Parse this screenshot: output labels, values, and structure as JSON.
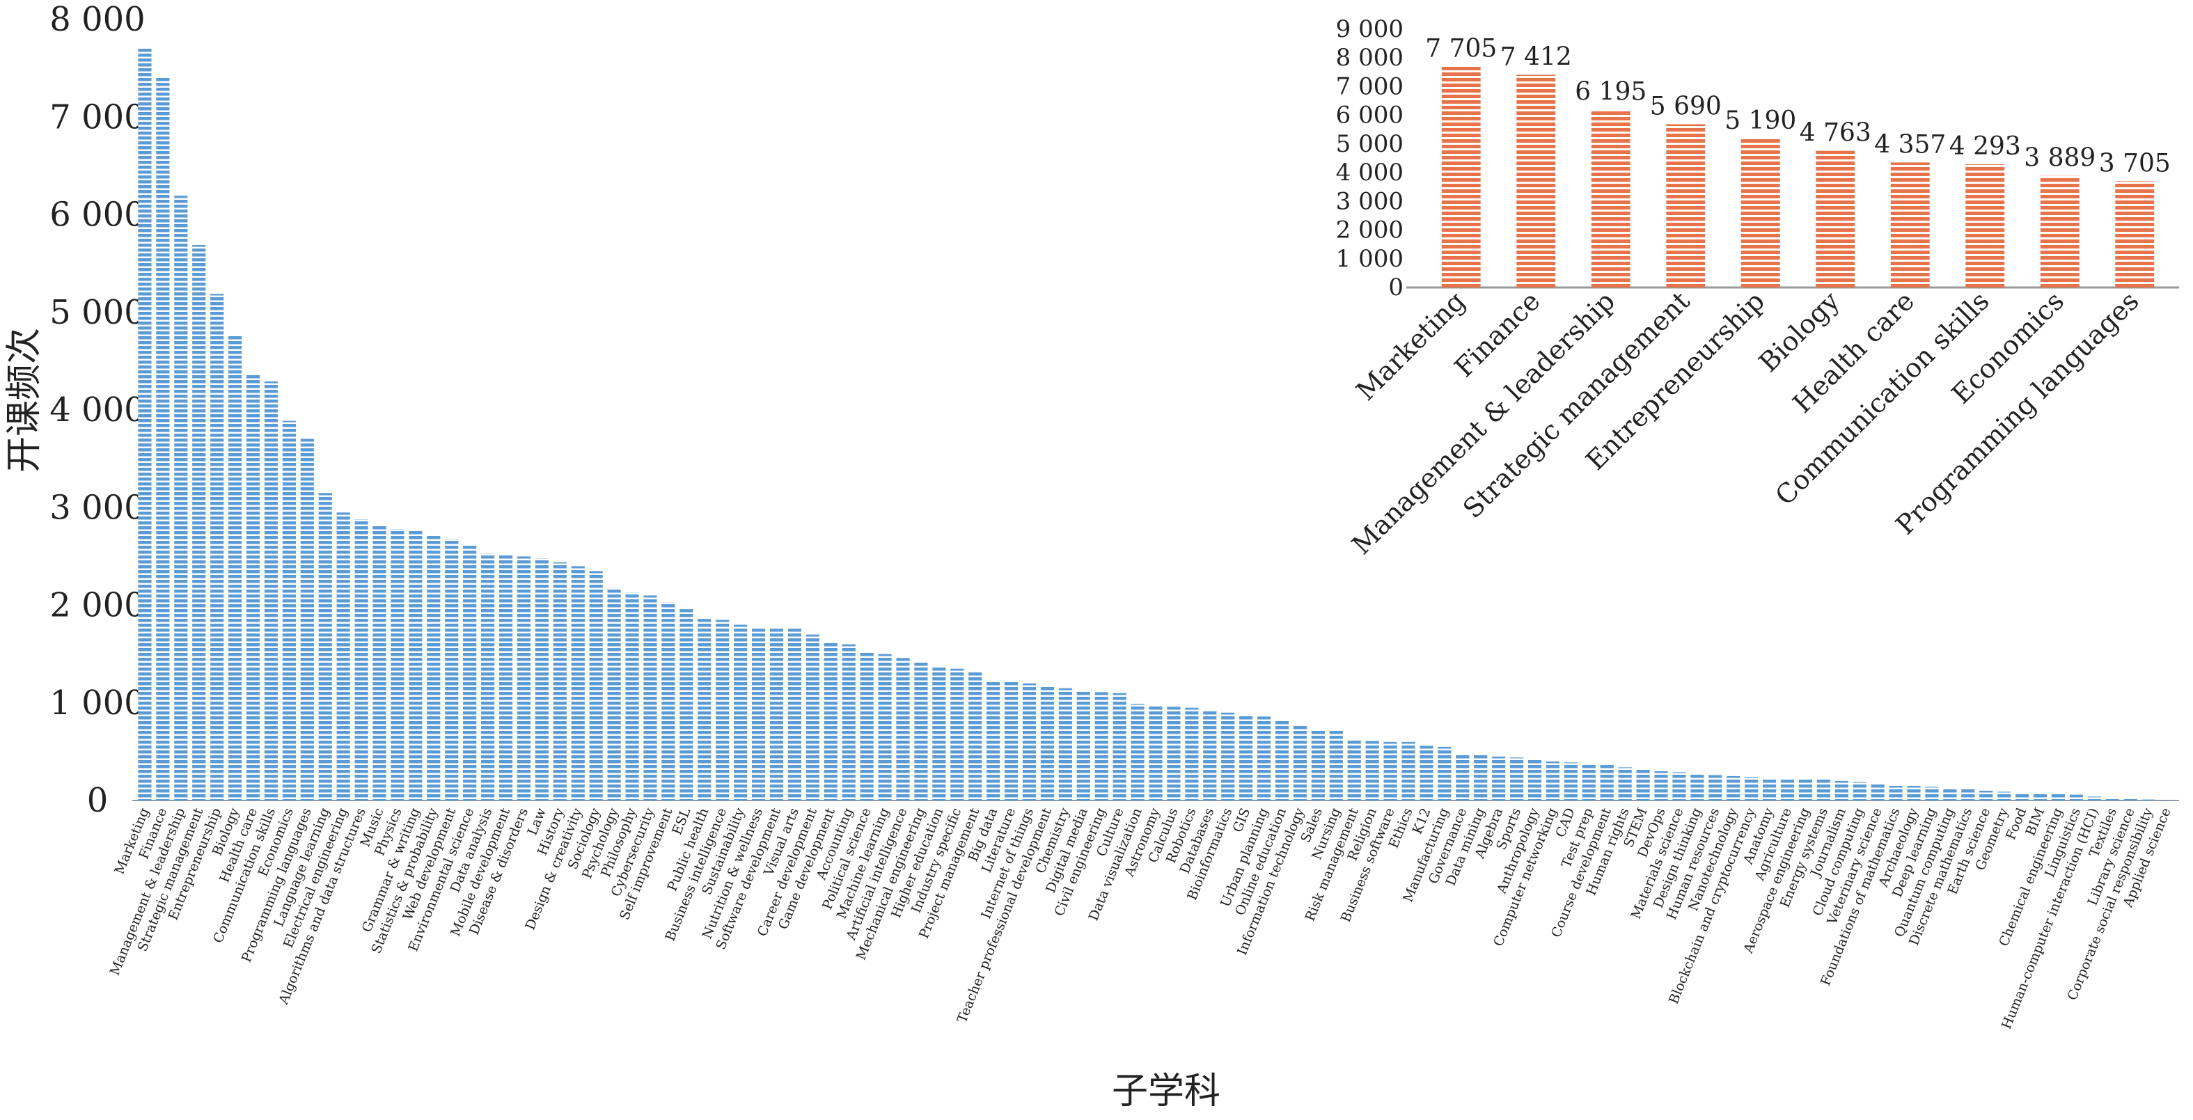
{
  "chart_data": [
    {
      "type": "bar",
      "ylabel": "开课频次",
      "xlabel": "子学科",
      "ylim": [
        0,
        8000
      ],
      "yticks": [
        0,
        1000,
        2000,
        3000,
        4000,
        5000,
        6000,
        7000,
        8000
      ],
      "ytick_labels": [
        "0",
        "1 000",
        "2 000",
        "3 000",
        "4 000",
        "5 000",
        "6 000",
        "7 000",
        "8 000"
      ],
      "grid": false,
      "bar_color": "#5b9bd5",
      "bar_pattern": "horizontal-stripes",
      "categories": [
        "Marketing",
        "Finance",
        "Management & leadership",
        "Strategic management",
        "Entrepreneurship",
        "Biology",
        "Health care",
        "Communication skills",
        "Economics",
        "Programming languages",
        "Language learning",
        "Electrical engineering",
        "Algorithms and data structures",
        "Music",
        "Physics",
        "Grammar & writing",
        "Statistics & probability",
        "Web development",
        "Environmental science",
        "Data analysis",
        "Mobile development",
        "Disease & disorders",
        "Law",
        "History",
        "Design & creativity",
        "Sociology",
        "Psychology",
        "Philosophy",
        "Cybersecurity",
        "Self improvement",
        "ESL",
        "Public health",
        "Business intelligence",
        "Sustainability",
        "Nutrition & wellness",
        "Software development",
        "Visual arts",
        "Career development",
        "Game development",
        "Accounting",
        "Political science",
        "Machine learning",
        "Artificial intelligence",
        "Mechanical engineering",
        "Higher education",
        "Industry specific",
        "Project management",
        "Big data",
        "Literature",
        "Internet of things",
        "Teacher professional development",
        "Chemistry",
        "Digital media",
        "Civil engineering",
        "Culture",
        "Data visualization",
        "Astronomy",
        "Calculus",
        "Robotics",
        "Databases",
        "Bioinformatics",
        "GIS",
        "Urban planning",
        "Online education",
        "Information technology",
        "Sales",
        "Nursing",
        "Risk management",
        "Religion",
        "Business software",
        "Ethics",
        "K12",
        "Manufacturing",
        "Governance",
        "Data mining",
        "Algebra",
        "Sports",
        "Anthropology",
        "Computer networking",
        "CAD",
        "Test prep",
        "Course development",
        "Human rights",
        "STEM",
        "DevOps",
        "Materials science",
        "Design thinking",
        "Human resources",
        "Nanotechnology",
        "Blockchain and cryptocurrency",
        "Anatomy",
        "Agriculture",
        "Aerospace engineering",
        "Energy systems",
        "Journalism",
        "Cloud computing",
        "Veterinary science",
        "Foundations of mathematics",
        "Archaeology",
        "Deep learning",
        "Quantum computing",
        "Discrete mathematics",
        "Earth science",
        "Geometry",
        "Food",
        "BIM",
        "Chemical engineering",
        "Linguistics",
        "Human-computer interaction (HCI)",
        "Textiles",
        "Library science",
        "Corporate social responsibility",
        "Applied science"
      ],
      "values": [
        7705,
        7412,
        6195,
        5690,
        5190,
        4763,
        4357,
        4293,
        3889,
        3705,
        3150,
        2950,
        2880,
        2820,
        2780,
        2760,
        2720,
        2680,
        2620,
        2530,
        2520,
        2500,
        2480,
        2440,
        2400,
        2350,
        2180,
        2130,
        2100,
        2030,
        1960,
        1860,
        1850,
        1800,
        1760,
        1760,
        1760,
        1700,
        1620,
        1600,
        1520,
        1500,
        1460,
        1420,
        1380,
        1350,
        1320,
        1230,
        1220,
        1200,
        1180,
        1150,
        1130,
        1110,
        1100,
        990,
        980,
        960,
        950,
        920,
        900,
        880,
        860,
        820,
        770,
        730,
        720,
        620,
        610,
        600,
        600,
        560,
        550,
        470,
        470,
        450,
        440,
        420,
        400,
        390,
        380,
        380,
        340,
        320,
        300,
        290,
        270,
        260,
        250,
        240,
        230,
        230,
        220,
        220,
        200,
        190,
        180,
        150,
        150,
        140,
        130,
        120,
        100,
        90,
        80,
        70,
        70,
        60,
        40,
        30,
        20,
        10,
        5
      ]
    },
    {
      "type": "bar",
      "inset": true,
      "ylim": [
        0,
        9000
      ],
      "yticks": [
        0,
        1000,
        2000,
        3000,
        4000,
        5000,
        6000,
        7000,
        8000,
        9000
      ],
      "ytick_labels": [
        "0",
        "1 000",
        "2 000",
        "3 000",
        "4 000",
        "5 000",
        "6 000",
        "7 000",
        "8 000",
        "9 000"
      ],
      "grid": false,
      "bar_color": "#e8734a",
      "bar_pattern": "horizontal-stripes",
      "categories": [
        "Marketing",
        "Finance",
        "Management & leadership",
        "Strategic management",
        "Entrepreneurship",
        "Biology",
        "Health care",
        "Communication skills",
        "Economics",
        "Programming languages"
      ],
      "values": [
        7705,
        7412,
        6195,
        5690,
        5190,
        4763,
        4357,
        4293,
        3889,
        3705
      ],
      "data_labels": [
        "7 705",
        "7 412",
        "6 195",
        "5 690",
        "5 190",
        "4 763",
        "4 357",
        "4 293",
        "3 889",
        "3 705"
      ]
    }
  ]
}
